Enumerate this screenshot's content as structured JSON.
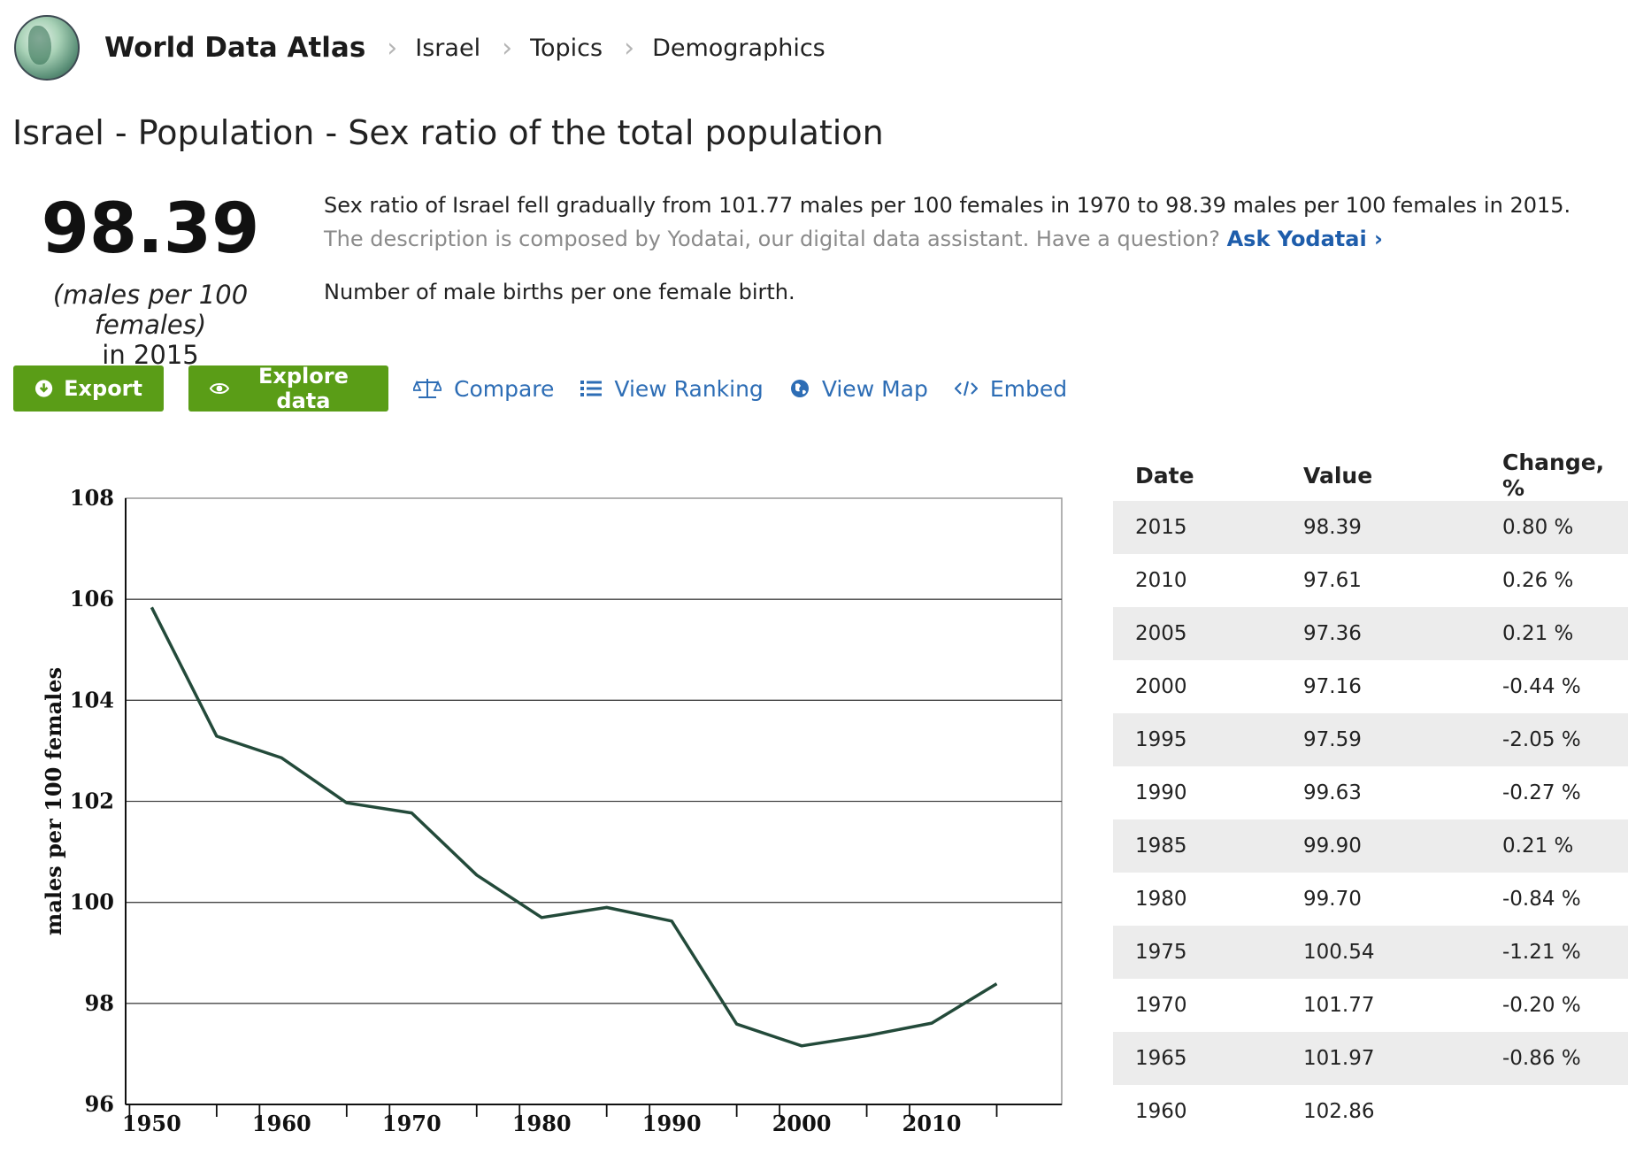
{
  "header": {
    "site_title": "World Data Atlas",
    "breadcrumbs": [
      "Israel",
      "Topics",
      "Demographics"
    ]
  },
  "page_title": "Israel - Population - Sex ratio of the total population",
  "summary": {
    "value": "98.39",
    "unit": "(males per 100 females)",
    "year": "in 2015"
  },
  "description": {
    "line1": "Sex ratio of Israel fell gradually from 101.77 males per 100 females in 1970 to 98.39 males per 100 females in 2015.",
    "line2": "The description is composed by Yodatai, our digital data assistant. Have a question?",
    "ask_link": "Ask Yodatai ›",
    "line3": "Number of male births per one female birth."
  },
  "actions": {
    "export": "Export",
    "explore": "Explore data",
    "compare": "Compare",
    "ranking": "View Ranking",
    "map": "View Map",
    "embed": "Embed"
  },
  "colors": {
    "button_green": "#5a9d17",
    "link_blue": "#2d6db5",
    "line": "#234a3a"
  },
  "chart_data": {
    "type": "line",
    "ylabel": "males per 100 females",
    "ylim": [
      96,
      108
    ],
    "yticks": [
      96,
      98,
      100,
      102,
      104,
      106,
      108
    ],
    "xticks": [
      1950,
      1960,
      1970,
      1980,
      1990,
      2000,
      2010
    ],
    "xlim": [
      1948,
      2020
    ],
    "grid": true,
    "series": [
      {
        "x": [
          1950,
          1955,
          1960,
          1965,
          1970,
          1975,
          1980,
          1985,
          1990,
          1995,
          2000,
          2005,
          2010,
          2015
        ],
        "values": [
          105.84,
          103.29,
          102.86,
          101.97,
          101.77,
          100.54,
          99.7,
          99.9,
          99.63,
          97.59,
          97.16,
          97.36,
          97.61,
          98.39
        ]
      }
    ]
  },
  "table": {
    "headers": [
      "Date",
      "Value",
      "Change, %"
    ],
    "rows": [
      [
        "2015",
        "98.39",
        "0.80 %"
      ],
      [
        "2010",
        "97.61",
        "0.26 %"
      ],
      [
        "2005",
        "97.36",
        "0.21 %"
      ],
      [
        "2000",
        "97.16",
        "-0.44 %"
      ],
      [
        "1995",
        "97.59",
        "-2.05 %"
      ],
      [
        "1990",
        "99.63",
        "-0.27 %"
      ],
      [
        "1985",
        "99.90",
        "0.21 %"
      ],
      [
        "1980",
        "99.70",
        "-0.84 %"
      ],
      [
        "1975",
        "100.54",
        "-1.21 %"
      ],
      [
        "1970",
        "101.77",
        "-0.20 %"
      ],
      [
        "1965",
        "101.97",
        "-0.86 %"
      ],
      [
        "1960",
        "102.86",
        ""
      ]
    ]
  }
}
